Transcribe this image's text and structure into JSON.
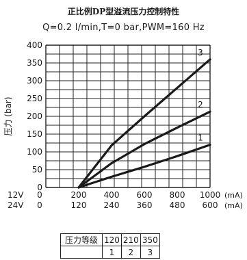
{
  "chart_data": {
    "type": "line",
    "title": "正比例DP型溢流压力控制特性",
    "subtitle": "Q=0.2 l/min,T=0 bar,PWM=160 Hz",
    "ylabel": "压力 (bar)",
    "ylim": [
      0,
      400
    ],
    "yticks": [
      "0",
      "50",
      "100",
      "150",
      "200",
      "250",
      "300",
      "350",
      "400"
    ],
    "xlim": [
      0,
      1000
    ],
    "x_axes": [
      {
        "voltage": "12V",
        "ticks": [
          "0",
          "200",
          "400",
          "600",
          "800",
          "1000"
        ],
        "unit": "(mA)"
      },
      {
        "voltage": "24V",
        "ticks": [
          "0",
          "120",
          "240",
          "360",
          "480",
          "600"
        ],
        "unit": "(mA)"
      }
    ],
    "grid": true,
    "series": [
      {
        "name": "1",
        "x": [
          200,
          400,
          600,
          800,
          1000
        ],
        "y": [
          0,
          30,
          58,
          88,
          120
        ]
      },
      {
        "name": "2",
        "x": [
          200,
          400,
          600,
          800,
          1000
        ],
        "y": [
          0,
          68,
          122,
          168,
          213
        ]
      },
      {
        "name": "3",
        "x": [
          200,
          400,
          600,
          800,
          1000
        ],
        "y": [
          0,
          118,
          200,
          280,
          360
        ]
      }
    ],
    "table": {
      "header": "压力等级",
      "grades": [
        "120",
        "210",
        "350"
      ],
      "curves": [
        "1",
        "2",
        "3"
      ]
    }
  }
}
